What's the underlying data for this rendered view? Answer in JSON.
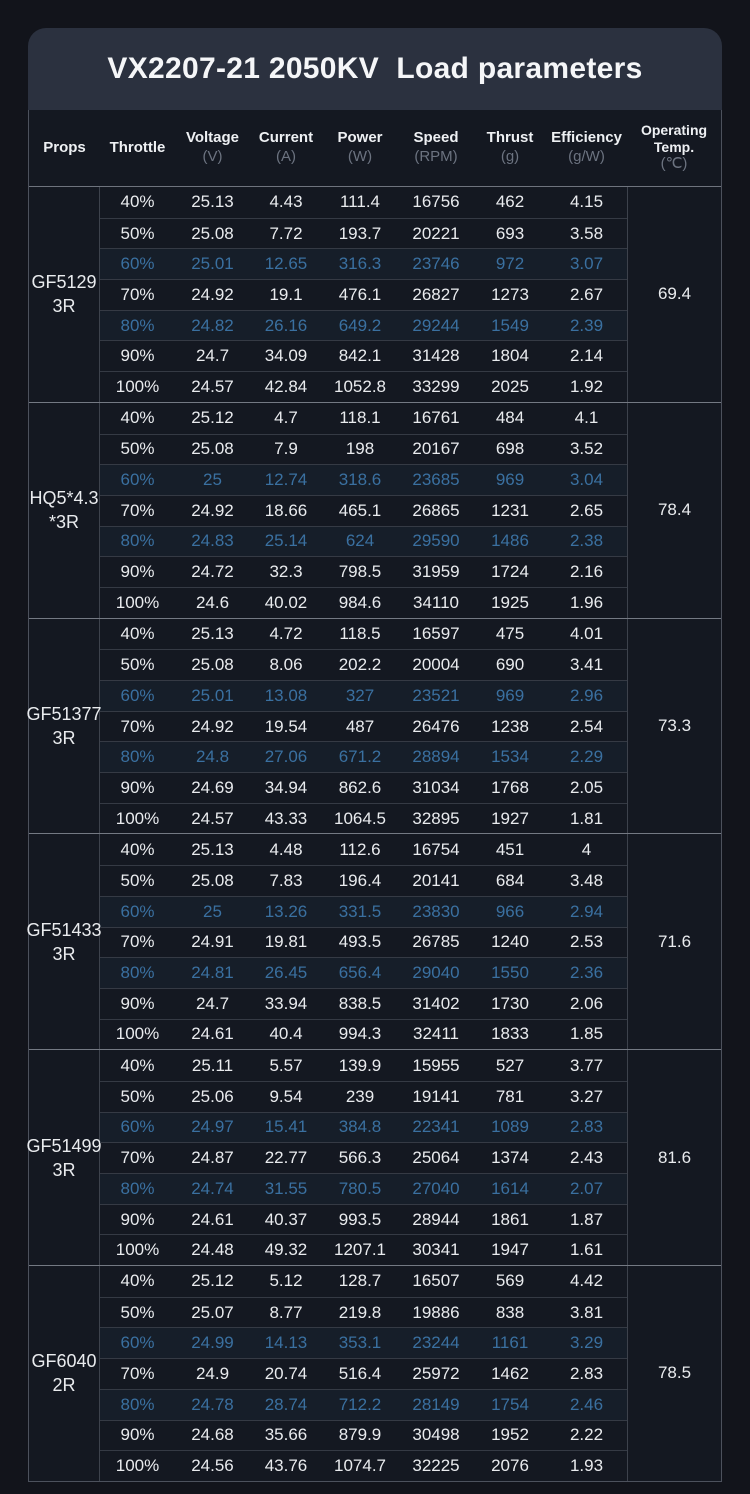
{
  "colors": {
    "page_background": "#12141b",
    "title_panel": "#2b313f",
    "table_background": "#141821",
    "text": "#e9ebee",
    "unit_text": "#6c7380",
    "highlight_text": "#3a70a0",
    "row_line": "#353a44",
    "group_line": "#747983",
    "column_line": "#3d424c",
    "outer_border": "#4c515c"
  },
  "chart_data": {
    "type": "table",
    "title": "VX2207-21 2050KV  Load parameters",
    "columns": [
      {
        "label": "Props",
        "unit": ""
      },
      {
        "label": "Throttle",
        "unit": ""
      },
      {
        "label": "Voltage",
        "unit": "(V)"
      },
      {
        "label": "Current",
        "unit": "(A)"
      },
      {
        "label": "Power",
        "unit": "(W)"
      },
      {
        "label": "Speed",
        "unit": "(RPM)"
      },
      {
        "label": "Thrust",
        "unit": "(g)"
      },
      {
        "label": "Efficiency",
        "unit": "(g/W)"
      },
      {
        "label": "Operating Temp.",
        "lines": [
          "Operating",
          "Temp."
        ],
        "unit": "(℃)"
      }
    ],
    "row_fields": [
      "throttle",
      "voltage",
      "current",
      "power",
      "speed",
      "thrust",
      "efficiency"
    ],
    "groups": [
      {
        "name": "GF5129 3R",
        "prop_lines": [
          "GF5129",
          "3R"
        ],
        "temp": "69.4",
        "rows": [
          {
            "throttle": "40%",
            "voltage": "25.13",
            "current": "4.43",
            "power": "111.4",
            "speed": "16756",
            "thrust": "462",
            "efficiency": "4.15",
            "highlight": false
          },
          {
            "throttle": "50%",
            "voltage": "25.08",
            "current": "7.72",
            "power": "193.7",
            "speed": "20221",
            "thrust": "693",
            "efficiency": "3.58",
            "highlight": false
          },
          {
            "throttle": "60%",
            "voltage": "25.01",
            "current": "12.65",
            "power": "316.3",
            "speed": "23746",
            "thrust": "972",
            "efficiency": "3.07",
            "highlight": true
          },
          {
            "throttle": "70%",
            "voltage": "24.92",
            "current": "19.1",
            "power": "476.1",
            "speed": "26827",
            "thrust": "1273",
            "efficiency": "2.67",
            "highlight": false
          },
          {
            "throttle": "80%",
            "voltage": "24.82",
            "current": "26.16",
            "power": "649.2",
            "speed": "29244",
            "thrust": "1549",
            "efficiency": "2.39",
            "highlight": true
          },
          {
            "throttle": "90%",
            "voltage": "24.7",
            "current": "34.09",
            "power": "842.1",
            "speed": "31428",
            "thrust": "1804",
            "efficiency": "2.14",
            "highlight": false
          },
          {
            "throttle": "100%",
            "voltage": "24.57",
            "current": "42.84",
            "power": "1052.8",
            "speed": "33299",
            "thrust": "2025",
            "efficiency": "1.92",
            "highlight": false
          }
        ]
      },
      {
        "name": "HQ5*4.3*3R",
        "prop_lines": [
          "HQ5*4.3",
          "*3R"
        ],
        "temp": "78.4",
        "rows": [
          {
            "throttle": "40%",
            "voltage": "25.12",
            "current": "4.7",
            "power": "118.1",
            "speed": "16761",
            "thrust": "484",
            "efficiency": "4.1",
            "highlight": false
          },
          {
            "throttle": "50%",
            "voltage": "25.08",
            "current": "7.9",
            "power": "198",
            "speed": "20167",
            "thrust": "698",
            "efficiency": "3.52",
            "highlight": false
          },
          {
            "throttle": "60%",
            "voltage": "25",
            "current": "12.74",
            "power": "318.6",
            "speed": "23685",
            "thrust": "969",
            "efficiency": "3.04",
            "highlight": true
          },
          {
            "throttle": "70%",
            "voltage": "24.92",
            "current": "18.66",
            "power": "465.1",
            "speed": "26865",
            "thrust": "1231",
            "efficiency": "2.65",
            "highlight": false
          },
          {
            "throttle": "80%",
            "voltage": "24.83",
            "current": "25.14",
            "power": "624",
            "speed": "29590",
            "thrust": "1486",
            "efficiency": "2.38",
            "highlight": true
          },
          {
            "throttle": "90%",
            "voltage": "24.72",
            "current": "32.3",
            "power": "798.5",
            "speed": "31959",
            "thrust": "1724",
            "efficiency": "2.16",
            "highlight": false
          },
          {
            "throttle": "100%",
            "voltage": "24.6",
            "current": "40.02",
            "power": "984.6",
            "speed": "34110",
            "thrust": "1925",
            "efficiency": "1.96",
            "highlight": false
          }
        ]
      },
      {
        "name": "GF51377 3R",
        "prop_lines": [
          "GF51377",
          "3R"
        ],
        "temp": "73.3",
        "rows": [
          {
            "throttle": "40%",
            "voltage": "25.13",
            "current": "4.72",
            "power": "118.5",
            "speed": "16597",
            "thrust": "475",
            "efficiency": "4.01",
            "highlight": false
          },
          {
            "throttle": "50%",
            "voltage": "25.08",
            "current": "8.06",
            "power": "202.2",
            "speed": "20004",
            "thrust": "690",
            "efficiency": "3.41",
            "highlight": false
          },
          {
            "throttle": "60%",
            "voltage": "25.01",
            "current": "13.08",
            "power": "327",
            "speed": "23521",
            "thrust": "969",
            "efficiency": "2.96",
            "highlight": true
          },
          {
            "throttle": "70%",
            "voltage": "24.92",
            "current": "19.54",
            "power": "487",
            "speed": "26476",
            "thrust": "1238",
            "efficiency": "2.54",
            "highlight": false
          },
          {
            "throttle": "80%",
            "voltage": "24.8",
            "current": "27.06",
            "power": "671.2",
            "speed": "28894",
            "thrust": "1534",
            "efficiency": "2.29",
            "highlight": true
          },
          {
            "throttle": "90%",
            "voltage": "24.69",
            "current": "34.94",
            "power": "862.6",
            "speed": "31034",
            "thrust": "1768",
            "efficiency": "2.05",
            "highlight": false
          },
          {
            "throttle": "100%",
            "voltage": "24.57",
            "current": "43.33",
            "power": "1064.5",
            "speed": "32895",
            "thrust": "1927",
            "efficiency": "1.81",
            "highlight": false
          }
        ]
      },
      {
        "name": "GF51433 3R",
        "prop_lines": [
          "GF51433",
          "3R"
        ],
        "temp": "71.6",
        "rows": [
          {
            "throttle": "40%",
            "voltage": "25.13",
            "current": "4.48",
            "power": "112.6",
            "speed": "16754",
            "thrust": "451",
            "efficiency": "4",
            "highlight": false
          },
          {
            "throttle": "50%",
            "voltage": "25.08",
            "current": "7.83",
            "power": "196.4",
            "speed": "20141",
            "thrust": "684",
            "efficiency": "3.48",
            "highlight": false
          },
          {
            "throttle": "60%",
            "voltage": "25",
            "current": "13.26",
            "power": "331.5",
            "speed": "23830",
            "thrust": "966",
            "efficiency": "2.94",
            "highlight": true
          },
          {
            "throttle": "70%",
            "voltage": "24.91",
            "current": "19.81",
            "power": "493.5",
            "speed": "26785",
            "thrust": "1240",
            "efficiency": "2.53",
            "highlight": false
          },
          {
            "throttle": "80%",
            "voltage": "24.81",
            "current": "26.45",
            "power": "656.4",
            "speed": "29040",
            "thrust": "1550",
            "efficiency": "2.36",
            "highlight": true
          },
          {
            "throttle": "90%",
            "voltage": "24.7",
            "current": "33.94",
            "power": "838.5",
            "speed": "31402",
            "thrust": "1730",
            "efficiency": "2.06",
            "highlight": false
          },
          {
            "throttle": "100%",
            "voltage": "24.61",
            "current": "40.4",
            "power": "994.3",
            "speed": "32411",
            "thrust": "1833",
            "efficiency": "1.85",
            "highlight": false
          }
        ]
      },
      {
        "name": "GF51499 3R",
        "prop_lines": [
          "GF51499",
          "3R"
        ],
        "temp": "81.6",
        "rows": [
          {
            "throttle": "40%",
            "voltage": "25.11",
            "current": "5.57",
            "power": "139.9",
            "speed": "15955",
            "thrust": "527",
            "efficiency": "3.77",
            "highlight": false
          },
          {
            "throttle": "50%",
            "voltage": "25.06",
            "current": "9.54",
            "power": "239",
            "speed": "19141",
            "thrust": "781",
            "efficiency": "3.27",
            "highlight": false
          },
          {
            "throttle": "60%",
            "voltage": "24.97",
            "current": "15.41",
            "power": "384.8",
            "speed": "22341",
            "thrust": "1089",
            "efficiency": "2.83",
            "highlight": true
          },
          {
            "throttle": "70%",
            "voltage": "24.87",
            "current": "22.77",
            "power": "566.3",
            "speed": "25064",
            "thrust": "1374",
            "efficiency": "2.43",
            "highlight": false
          },
          {
            "throttle": "80%",
            "voltage": "24.74",
            "current": "31.55",
            "power": "780.5",
            "speed": "27040",
            "thrust": "1614",
            "efficiency": "2.07",
            "highlight": true
          },
          {
            "throttle": "90%",
            "voltage": "24.61",
            "current": "40.37",
            "power": "993.5",
            "speed": "28944",
            "thrust": "1861",
            "efficiency": "1.87",
            "highlight": false
          },
          {
            "throttle": "100%",
            "voltage": "24.48",
            "current": "49.32",
            "power": "1207.1",
            "speed": "30341",
            "thrust": "1947",
            "efficiency": "1.61",
            "highlight": false
          }
        ]
      },
      {
        "name": "GF6040 2R",
        "prop_lines": [
          "GF6040",
          "2R"
        ],
        "temp": "78.5",
        "rows": [
          {
            "throttle": "40%",
            "voltage": "25.12",
            "current": "5.12",
            "power": "128.7",
            "speed": "16507",
            "thrust": "569",
            "efficiency": "4.42",
            "highlight": false
          },
          {
            "throttle": "50%",
            "voltage": "25.07",
            "current": "8.77",
            "power": "219.8",
            "speed": "19886",
            "thrust": "838",
            "efficiency": "3.81",
            "highlight": false
          },
          {
            "throttle": "60%",
            "voltage": "24.99",
            "current": "14.13",
            "power": "353.1",
            "speed": "23244",
            "thrust": "1161",
            "efficiency": "3.29",
            "highlight": true
          },
          {
            "throttle": "70%",
            "voltage": "24.9",
            "current": "20.74",
            "power": "516.4",
            "speed": "25972",
            "thrust": "1462",
            "efficiency": "2.83",
            "highlight": false
          },
          {
            "throttle": "80%",
            "voltage": "24.78",
            "current": "28.74",
            "power": "712.2",
            "speed": "28149",
            "thrust": "1754",
            "efficiency": "2.46",
            "highlight": true
          },
          {
            "throttle": "90%",
            "voltage": "24.68",
            "current": "35.66",
            "power": "879.9",
            "speed": "30498",
            "thrust": "1952",
            "efficiency": "2.22",
            "highlight": false
          },
          {
            "throttle": "100%",
            "voltage": "24.56",
            "current": "43.76",
            "power": "1074.7",
            "speed": "32225",
            "thrust": "2076",
            "efficiency": "1.93",
            "highlight": false
          }
        ]
      }
    ]
  }
}
